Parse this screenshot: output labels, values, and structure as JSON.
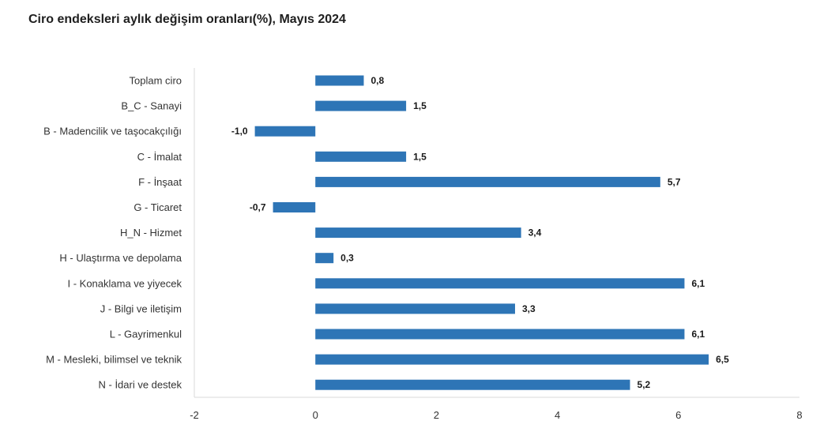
{
  "chart_data": {
    "type": "bar",
    "orientation": "horizontal",
    "title": "Ciro endeksleri aylık değişim oranları(%), Mayıs 2024",
    "categories": [
      "Toplam ciro",
      "B_C - Sanayi",
      "B - Madencilik ve taşocakçılığı",
      "C - İmalat",
      "F - İnşaat",
      "G - Ticaret",
      "H_N - Hizmet",
      "H - Ulaştırma ve depolama",
      "I - Konaklama ve yiyecek",
      "J - Bilgi ve iletişim",
      "L - Gayrimenkul",
      "M - Mesleki, bilimsel ve teknik",
      "N - İdari ve destek"
    ],
    "values": [
      0.8,
      1.5,
      -1.0,
      1.5,
      5.7,
      -0.7,
      3.4,
      0.3,
      6.1,
      3.3,
      6.1,
      6.5,
      5.2
    ],
    "value_labels": [
      "0,8",
      "1,5",
      "-1,0",
      "1,5",
      "5,7",
      "-0,7",
      "3,4",
      "0,3",
      "6,1",
      "3,3",
      "6,1",
      "6,5",
      "5,2"
    ],
    "xlim": [
      -2,
      8
    ],
    "xticks": [
      -2,
      0,
      2,
      4,
      6,
      8
    ],
    "xtick_labels": [
      "-2",
      "0",
      "2",
      "4",
      "6",
      "8"
    ],
    "xlabel": "",
    "ylabel": "",
    "grid": false,
    "bar_color": "#2e75b6",
    "axis_color": "#d9d9d9"
  }
}
